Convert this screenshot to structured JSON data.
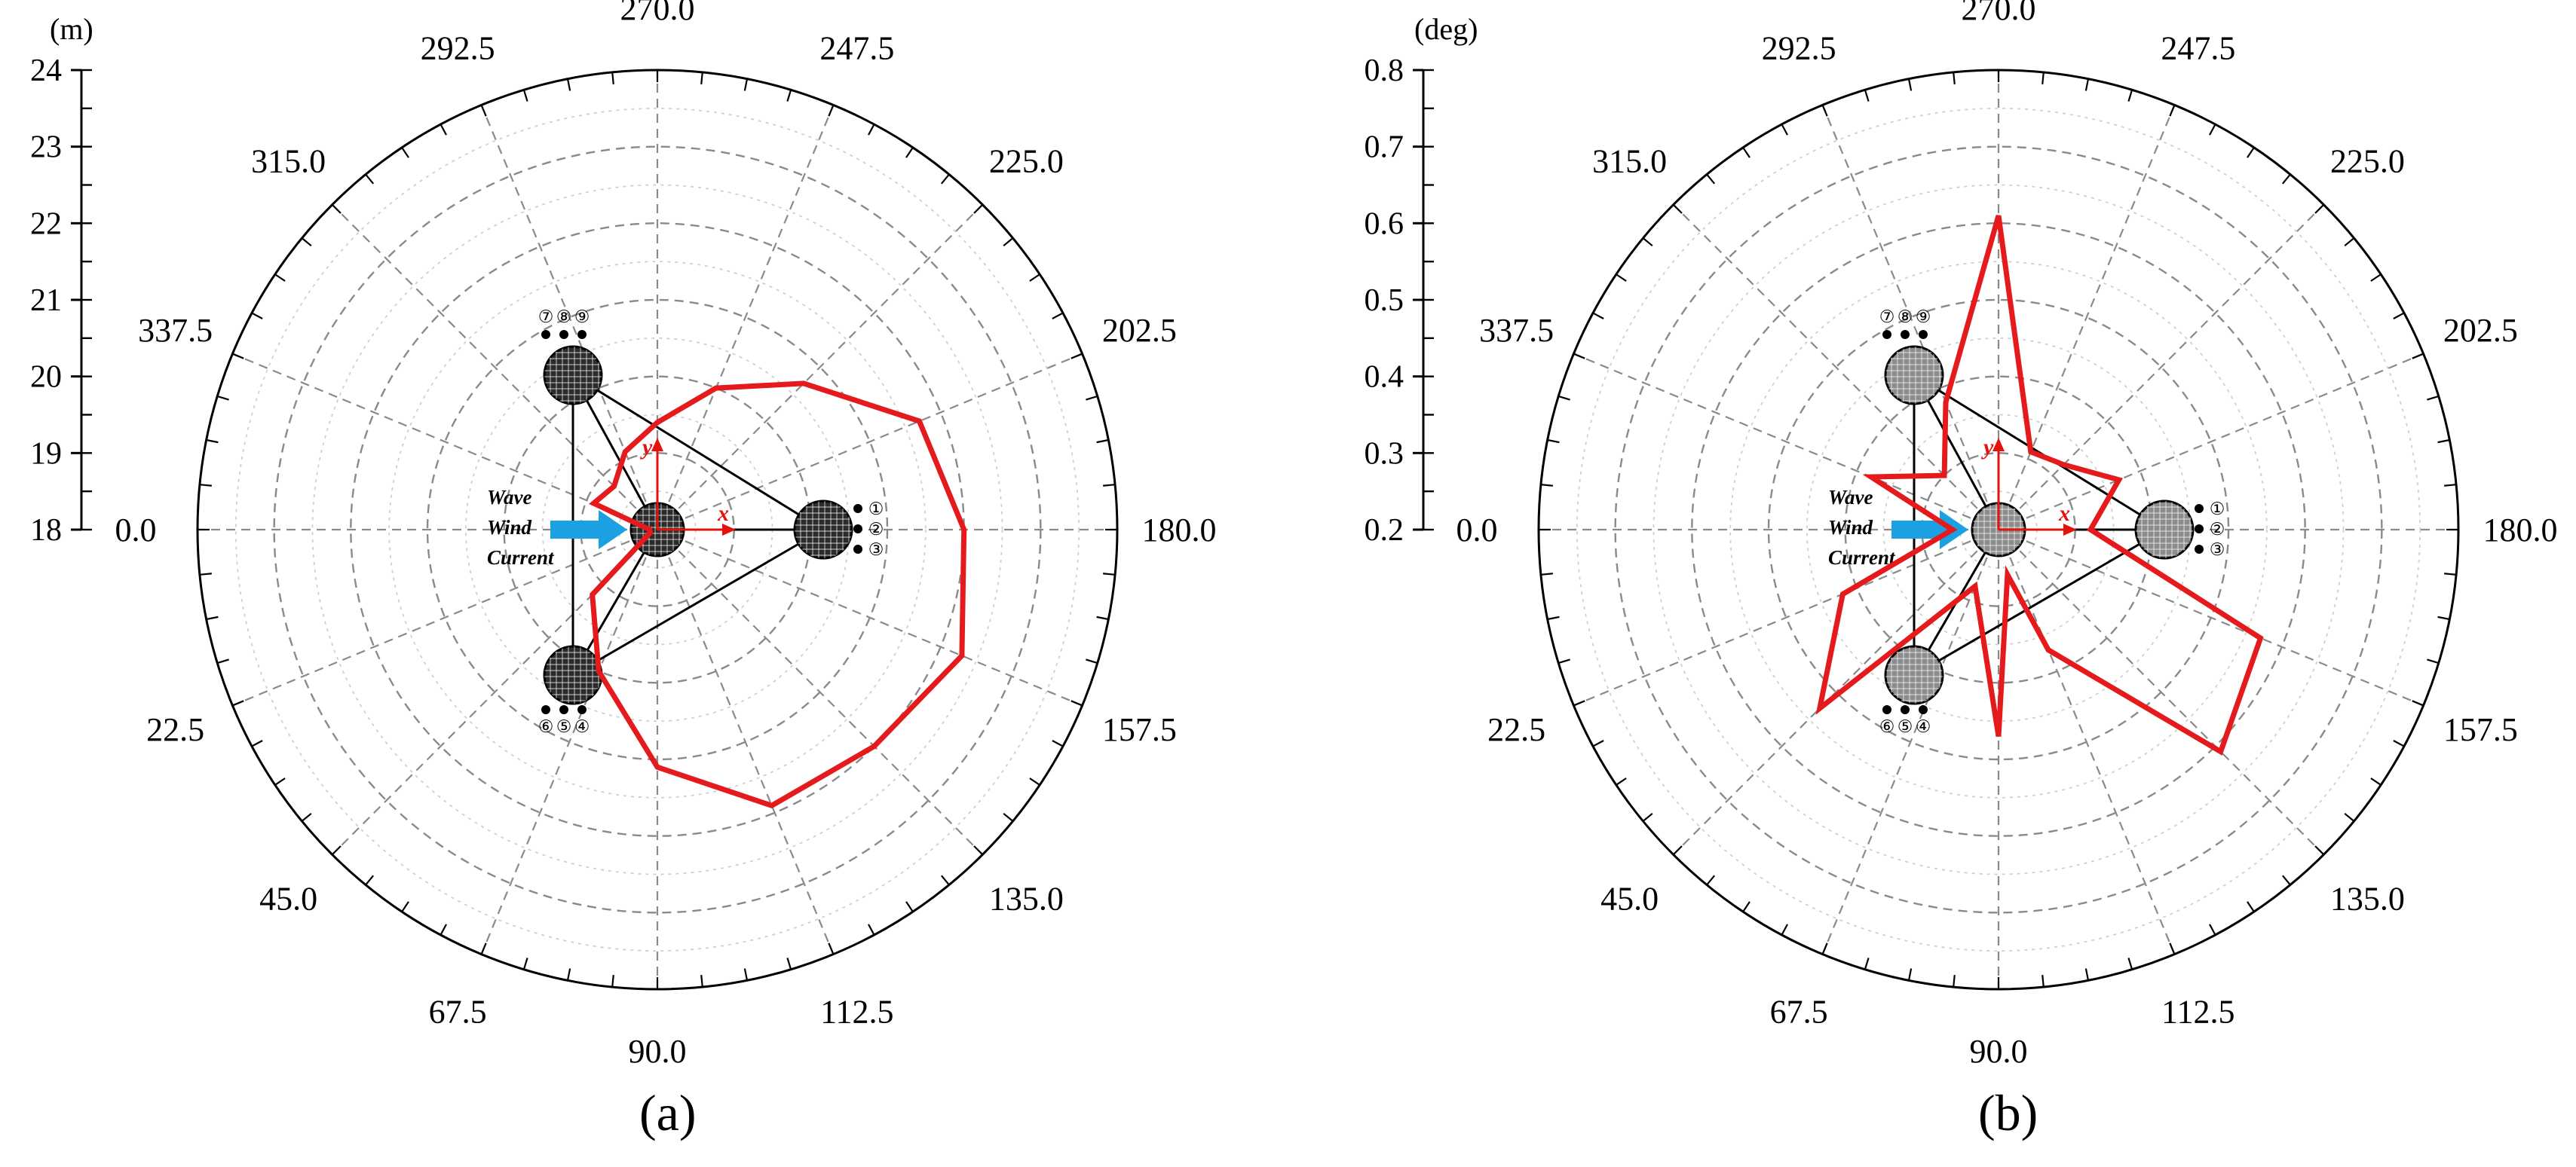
{
  "panels": [
    {
      "id": "a",
      "label": "(a)",
      "unit": "(m)",
      "legend": [
        "Wave",
        "Wind",
        "Current"
      ],
      "axis_letters": [
        "x",
        "y"
      ],
      "column_numbers": [
        "①",
        "②",
        "③",
        "④",
        "⑤",
        "⑥",
        "⑦",
        "⑧",
        "⑨"
      ]
    },
    {
      "id": "b",
      "label": "(b)",
      "unit": "(deg)",
      "legend": [
        "Wave",
        "Wind",
        "Current"
      ],
      "axis_letters": [
        "x",
        "y"
      ],
      "column_numbers": [
        "①",
        "②",
        "③",
        "④",
        "⑤",
        "⑥",
        "⑦",
        "⑧",
        "⑨"
      ]
    }
  ],
  "chart_data": [
    {
      "type": "polar-line",
      "angle_labels": [
        "0.0",
        "22.5",
        "45.0",
        "67.5",
        "90.0",
        "112.5",
        "135.0",
        "157.5",
        "180.0",
        "202.5",
        "225.0",
        "247.5",
        "270.0",
        "292.5",
        "315.0",
        "337.5"
      ],
      "angle_direction": "clockwise from left, 90.0 at bottom",
      "radial_unit": "(m)",
      "radial_ticks": [
        "18",
        "19",
        "20",
        "21",
        "22",
        "23",
        "24"
      ],
      "rlim": [
        18,
        24
      ],
      "grid": true,
      "line_color": "#e41a1c",
      "angles_deg": [
        0,
        22.5,
        45,
        67.5,
        90,
        112.5,
        135,
        157.5,
        180,
        202.5,
        225,
        247.5,
        270,
        292.5,
        315,
        337.5
      ],
      "values": [
        18.1,
        18.1,
        19.2,
        20.0,
        21.1,
        21.9,
        22.0,
        22.3,
        22.0,
        21.7,
        20.7,
        20.0,
        19.4,
        19.1,
        18.8,
        18.9
      ]
    },
    {
      "type": "polar-line",
      "angle_labels": [
        "0.0",
        "22.5",
        "45.0",
        "67.5",
        "90.0",
        "112.5",
        "135.0",
        "157.5",
        "180.0",
        "202.5",
        "225.0",
        "247.5",
        "270.0",
        "292.5",
        "315.0",
        "337.5"
      ],
      "angle_direction": "clockwise from left, 90.0 at bottom",
      "radial_unit": "(deg)",
      "radial_ticks": [
        "0.2",
        "0.3",
        "0.4",
        "0.5",
        "0.6",
        "0.7",
        "0.8"
      ],
      "rlim": [
        0.2,
        0.8
      ],
      "grid": true,
      "line_color": "#e41a1c",
      "angles_deg": [
        0,
        22.5,
        45,
        67.5,
        90,
        101.25,
        112.5,
        135,
        157.5,
        180,
        202.5,
        225,
        247.5,
        270,
        292.5,
        315,
        337.5
      ],
      "values": [
        0.26,
        0.42,
        0.53,
        0.28,
        0.47,
        0.26,
        0.37,
        0.61,
        0.57,
        0.32,
        0.37,
        0.32,
        0.31,
        0.61,
        0.38,
        0.3,
        0.38
      ]
    }
  ]
}
